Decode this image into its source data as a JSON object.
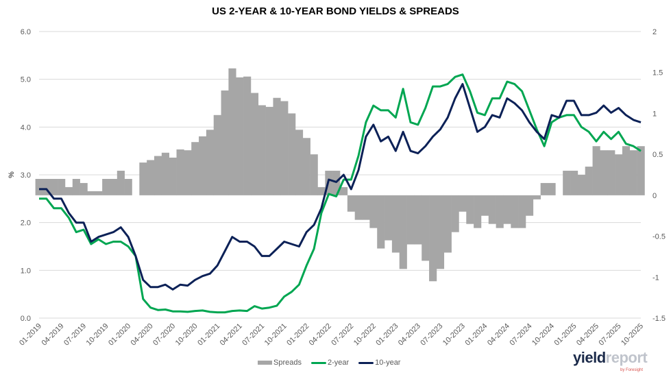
{
  "chart_data": {
    "type": "bar+line",
    "title": "US 2-YEAR & 10-YEAR BOND YIELDS & SPREADS",
    "ylabel": "%",
    "ylim": [
      0,
      6
    ],
    "y2lim": [
      -1.5,
      2
    ],
    "yticks": [
      "0.0",
      "1.0",
      "2.0",
      "3.0",
      "4.0",
      "5.0",
      "6.0"
    ],
    "y2ticks": [
      "-1.5",
      "-1",
      "-0.5",
      "0",
      "0.5",
      "1",
      "1.5",
      "2"
    ],
    "grid": true,
    "legend": "bottom",
    "xticks": [
      "01-2019",
      "04-2019",
      "07-2019",
      "10-2019",
      "01-2020",
      "04-2020",
      "07-2020",
      "10-2020",
      "01-2021",
      "04-2021",
      "07-2021",
      "10-2021",
      "01-2022",
      "04-2022",
      "07-2022",
      "10-2022",
      "01-2023",
      "04-2023",
      "07-2023",
      "10-2023",
      "01-2024",
      "04-2024",
      "07-2024",
      "10-2024",
      "01-2025",
      "04-2025",
      "07-2025",
      "10-2025"
    ],
    "x_start": "01-2019",
    "x_step": "month",
    "series": [
      {
        "name": "Spreads",
        "type": "bar",
        "axis": "right",
        "color": "#a6a6a6",
        "values": [
          0.2,
          0.2,
          0.2,
          0.2,
          0.1,
          0.2,
          0.15,
          0.05,
          0.05,
          0.2,
          0.2,
          0.3,
          0.2,
          0.0,
          0.4,
          0.43,
          0.48,
          0.52,
          0.46,
          0.56,
          0.55,
          0.65,
          0.72,
          0.8,
          0.98,
          1.28,
          1.55,
          1.44,
          1.45,
          1.25,
          1.1,
          1.08,
          1.19,
          1.15,
          1.0,
          0.8,
          0.7,
          0.5,
          0.1,
          0.3,
          0.3,
          0.1,
          -0.2,
          -0.3,
          -0.3,
          -0.4,
          -0.65,
          -0.55,
          -0.7,
          -0.9,
          -0.6,
          -0.6,
          -0.8,
          -1.05,
          -0.9,
          -0.7,
          -0.45,
          -0.2,
          -0.35,
          -0.4,
          -0.25,
          -0.35,
          -0.4,
          -0.35,
          -0.4,
          -0.4,
          -0.25,
          -0.05,
          0.15,
          0.15,
          0.0,
          0.3,
          0.3,
          0.25,
          0.35,
          0.6,
          0.55,
          0.55,
          0.5,
          0.6,
          0.55,
          0.6
        ]
      },
      {
        "name": "2-year",
        "type": "line",
        "axis": "left",
        "color": "#00a651",
        "values": [
          2.5,
          2.5,
          2.3,
          2.3,
          2.1,
          1.8,
          1.85,
          1.55,
          1.65,
          1.55,
          1.6,
          1.6,
          1.5,
          1.3,
          0.4,
          0.22,
          0.17,
          0.18,
          0.14,
          0.14,
          0.13,
          0.15,
          0.16,
          0.13,
          0.12,
          0.12,
          0.15,
          0.16,
          0.15,
          0.25,
          0.2,
          0.22,
          0.26,
          0.45,
          0.55,
          0.7,
          1.1,
          1.45,
          2.2,
          2.6,
          2.55,
          2.9,
          2.9,
          3.4,
          4.1,
          4.45,
          4.35,
          4.35,
          4.2,
          4.8,
          4.1,
          4.05,
          4.4,
          4.85,
          4.85,
          4.9,
          5.05,
          5.1,
          4.75,
          4.3,
          4.25,
          4.6,
          4.6,
          4.95,
          4.9,
          4.75,
          4.35,
          3.95,
          3.6,
          4.1,
          4.2,
          4.25,
          4.25,
          4.0,
          3.9,
          3.7,
          3.9,
          3.75,
          3.9,
          3.65,
          3.6,
          3.5
        ]
      },
      {
        "name": "10-year",
        "type": "line",
        "axis": "left",
        "color": "#0c2157",
        "values": [
          2.7,
          2.7,
          2.5,
          2.5,
          2.2,
          2.0,
          2.0,
          1.6,
          1.7,
          1.75,
          1.8,
          1.9,
          1.7,
          1.3,
          0.8,
          0.65,
          0.65,
          0.7,
          0.6,
          0.7,
          0.68,
          0.8,
          0.88,
          0.93,
          1.1,
          1.4,
          1.7,
          1.6,
          1.6,
          1.5,
          1.3,
          1.3,
          1.45,
          1.6,
          1.55,
          1.5,
          1.8,
          1.95,
          2.3,
          2.9,
          2.85,
          3.0,
          2.7,
          3.1,
          3.8,
          4.05,
          3.7,
          3.8,
          3.5,
          3.9,
          3.5,
          3.45,
          3.6,
          3.8,
          3.95,
          4.2,
          4.6,
          4.9,
          4.4,
          3.9,
          4.0,
          4.25,
          4.2,
          4.6,
          4.5,
          4.35,
          4.1,
          3.9,
          3.75,
          4.25,
          4.2,
          4.55,
          4.55,
          4.25,
          4.25,
          4.3,
          4.45,
          4.3,
          4.4,
          4.25,
          4.15,
          4.1
        ]
      }
    ]
  },
  "legend": {
    "spreads": "Spreads",
    "two_year": "2-year",
    "ten_year": "10-year"
  },
  "logo": {
    "part1": "yield",
    "part2": "report",
    "sub": "by Foresight"
  }
}
